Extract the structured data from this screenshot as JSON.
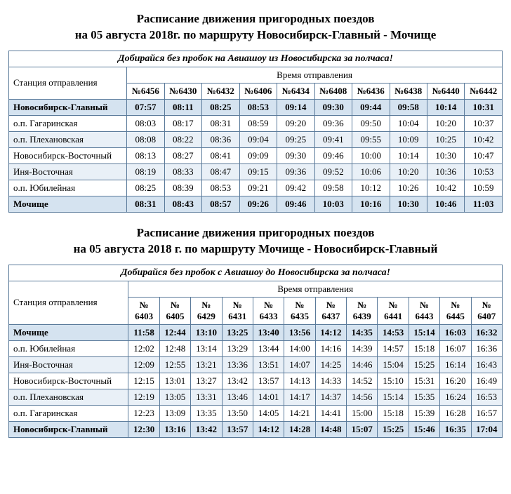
{
  "table1": {
    "title_line1": "Расписание движения пригородных поездов",
    "title_line2": "на 05 августа 2018г. по маршруту Новосибирск-Главный - Мочище",
    "banner": "Добирайся без пробок на Авиашоу из Новосибирска  за полчаса!",
    "departure_header": "Время отправления",
    "station_header": "Станция отправления",
    "trains": [
      "№6456",
      "№6430",
      "№6432",
      "№6406",
      "№6434",
      "№6408",
      "№6436",
      "№6438",
      "№6440",
      "№6442"
    ],
    "rows": [
      {
        "station": "Новосибирск-Главный",
        "bold": true,
        "times": [
          "07:57",
          "08:11",
          "08:25",
          "08:53",
          "09:14",
          "09:30",
          "09:44",
          "09:58",
          "10:14",
          "10:31"
        ]
      },
      {
        "station": "о.п. Гагаринская",
        "bold": false,
        "times": [
          "08:03",
          "08:17",
          "08:31",
          "08:59",
          "09:20",
          "09:36",
          "09:50",
          "10:04",
          "10:20",
          "10:37"
        ]
      },
      {
        "station": "о.п. Плехановская",
        "bold": false,
        "times": [
          "08:08",
          "08:22",
          "08:36",
          "09:04",
          "09:25",
          "09:41",
          "09:55",
          "10:09",
          "10:25",
          "10:42"
        ]
      },
      {
        "station": "Новосибирск-Восточный",
        "bold": false,
        "times": [
          "08:13",
          "08:27",
          "08:41",
          "09:09",
          "09:30",
          "09:46",
          "10:00",
          "10:14",
          "10:30",
          "10:47"
        ]
      },
      {
        "station": "Иня-Восточная",
        "bold": false,
        "times": [
          "08:19",
          "08:33",
          "08:47",
          "09:15",
          "09:36",
          "09:52",
          "10:06",
          "10:20",
          "10:36",
          "10:53"
        ]
      },
      {
        "station": "о.п. Юбилейная",
        "bold": false,
        "times": [
          "08:25",
          "08:39",
          "08:53",
          "09:21",
          "09:42",
          "09:58",
          "10:12",
          "10:26",
          "10:42",
          "10:59"
        ]
      },
      {
        "station": "Мочище",
        "bold": true,
        "times": [
          "08:31",
          "08:43",
          "08:57",
          "09:26",
          "09:46",
          "10:03",
          "10:16",
          "10:30",
          "10:46",
          "11:03"
        ]
      }
    ]
  },
  "table2": {
    "title_line1": "Расписание движения пригородных поездов",
    "title_line2": "на 05 августа 2018 г. по маршруту Мочище - Новосибирск-Главный",
    "banner": "Добирайся без пробок с Авиашоу до Новосибирска за полчаса!",
    "departure_header": "Время отправления",
    "station_header": "Станция отправления",
    "trains": [
      "№ 6403",
      "№ 6405",
      "№ 6429",
      "№ 6431",
      "№ 6433",
      "№ 6435",
      "№ 6437",
      "№ 6439",
      "№ 6441",
      "№ 6443",
      "№ 6445",
      "№ 6407"
    ],
    "rows": [
      {
        "station": "Мочище",
        "bold": true,
        "times": [
          "11:58",
          "12:44",
          "13:10",
          "13:25",
          "13:40",
          "13:56",
          "14:12",
          "14:35",
          "14:53",
          "15:14",
          "16:03",
          "16:32"
        ]
      },
      {
        "station": "о.п. Юбилейная",
        "bold": false,
        "times": [
          "12:02",
          "12:48",
          "13:14",
          "13:29",
          "13:44",
          "14:00",
          "14:16",
          "14:39",
          "14:57",
          "15:18",
          "16:07",
          "16:36"
        ]
      },
      {
        "station": "Иня-Восточная",
        "bold": false,
        "times": [
          "12:09",
          "12:55",
          "13:21",
          "13:36",
          "13:51",
          "14:07",
          "14:25",
          "14:46",
          "15:04",
          "15:25",
          "16:14",
          "16:43"
        ]
      },
      {
        "station": "Новосибирск-Восточный",
        "bold": false,
        "times": [
          "12:15",
          "13:01",
          "13:27",
          "13:42",
          "13:57",
          "14:13",
          "14:33",
          "14:52",
          "15:10",
          "15:31",
          "16:20",
          "16:49"
        ]
      },
      {
        "station": "о.п. Плехановская",
        "bold": false,
        "times": [
          "12:19",
          "13:05",
          "13:31",
          "13:46",
          "14:01",
          "14:17",
          "14:37",
          "14:56",
          "15:14",
          "15:35",
          "16:24",
          "16:53"
        ]
      },
      {
        "station": "о.п. Гагаринская",
        "bold": false,
        "times": [
          "12:23",
          "13:09",
          "13:35",
          "13:50",
          "14:05",
          "14:21",
          "14:41",
          "15:00",
          "15:18",
          "15:39",
          "16:28",
          "16:57"
        ]
      },
      {
        "station": "Новосибирск-Главный",
        "bold": true,
        "times": [
          "12:30",
          "13:16",
          "13:42",
          "13:57",
          "14:12",
          "14:28",
          "14:48",
          "15:07",
          "15:25",
          "15:46",
          "16:35",
          "17:04"
        ]
      }
    ]
  },
  "colors": {
    "border": "#5a7a9a",
    "bold_bg": "#d5e3f0",
    "even_bg": "#e9f0f7"
  }
}
